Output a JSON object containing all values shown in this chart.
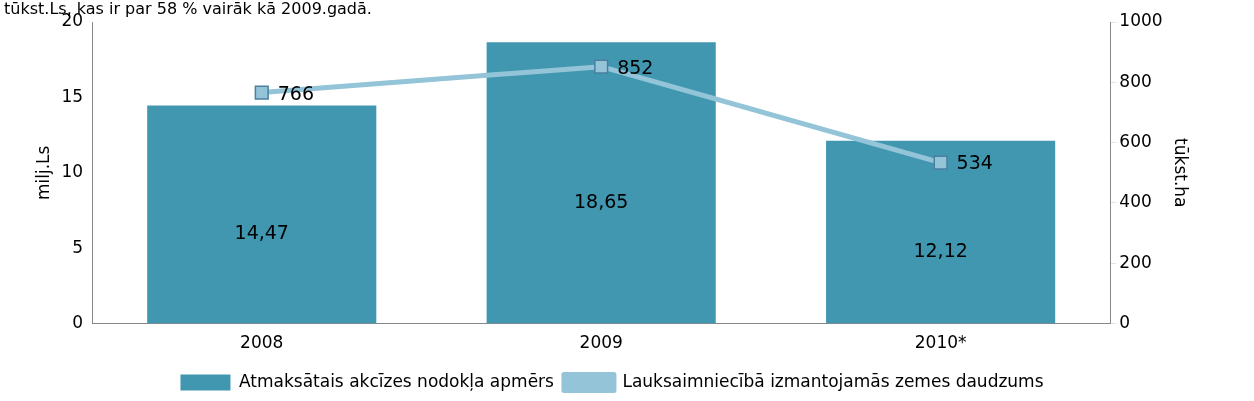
{
  "chart_data": {
    "type": "bar",
    "categories": [
      "2008",
      "2009",
      "2010*"
    ],
    "series": [
      {
        "name": "Atmaksātais akcīzes nodokļa apmērs",
        "color": "#4197b0",
        "values": [
          14.47,
          18.65,
          12.12
        ],
        "value_labels": [
          "14,47",
          "18,65",
          "12,12"
        ]
      },
      {
        "name": "Lauksaimniecībā izmantojamās zemes daudzums",
        "type": "line",
        "axis": "y2",
        "color": "#93c4d8",
        "values": [
          766,
          852,
          534
        ],
        "value_labels": [
          "766",
          "852",
          "534"
        ],
        "marker": "square"
      }
    ],
    "ylabel": "milj.Ls",
    "y2label": "tūkst.ha",
    "ylim": [
      0,
      20
    ],
    "yticks": [
      0,
      5,
      10,
      15,
      20
    ],
    "y2lim": [
      0,
      1000
    ],
    "y2ticks": [
      0,
      200,
      400,
      600,
      800,
      1000
    ],
    "grid": false,
    "legend": "bottom",
    "annotations": [
      "tūkst.Ls, kas ir par 58 % vairāk kā 2009.gadā."
    ]
  }
}
